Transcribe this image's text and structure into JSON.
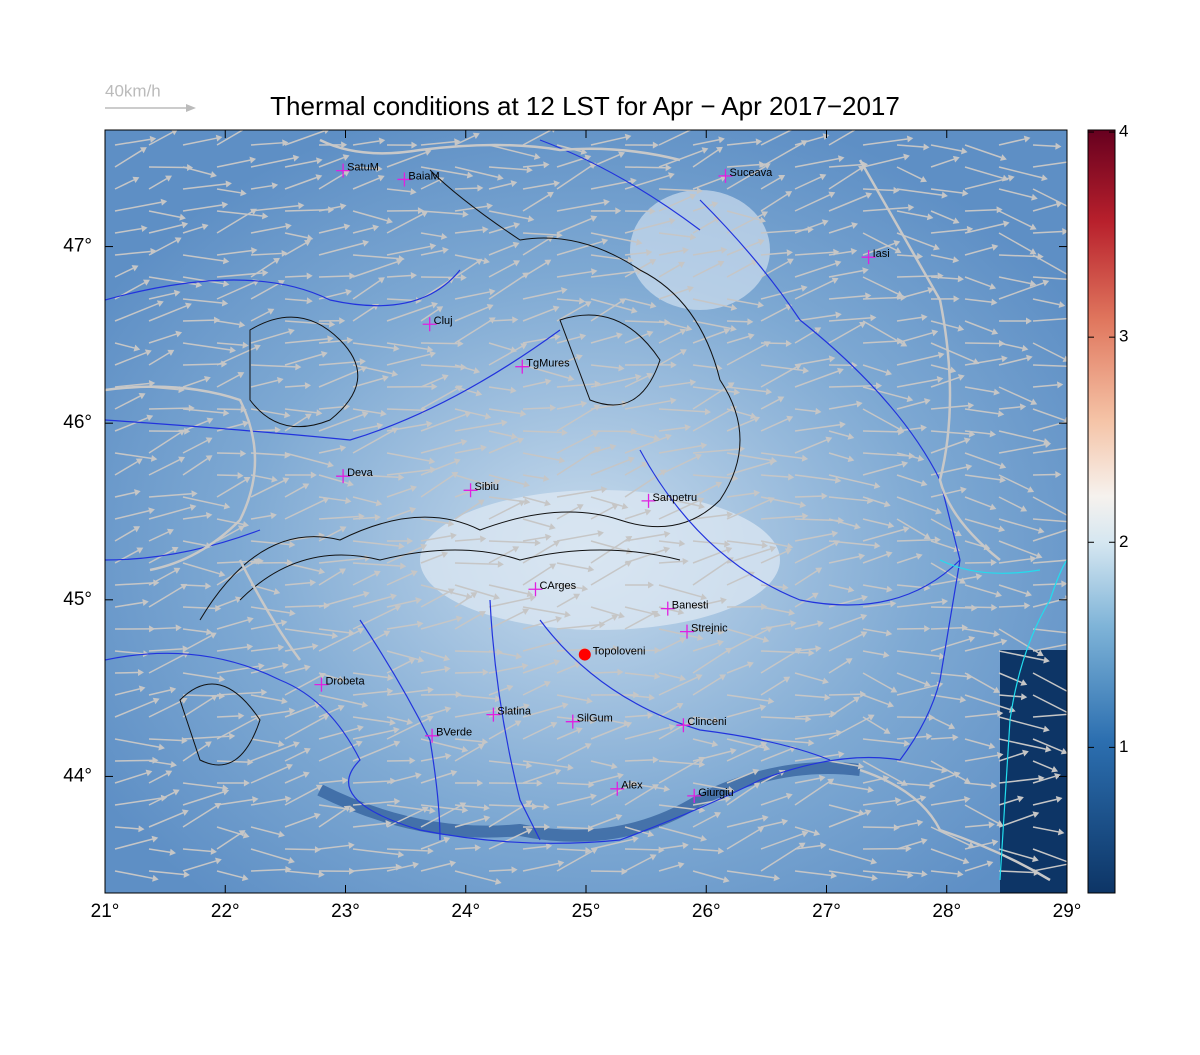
{
  "title": "Thermal conditions at 12 LST for Apr − Apr  2017−2017",
  "wind_legend": "40km/h",
  "map": {
    "lon_range": [
      21,
      29
    ],
    "lat_range": [
      43.34,
      47.66
    ]
  },
  "lon_ticks": [
    {
      "value": 21,
      "label": "21°"
    },
    {
      "value": 22,
      "label": "22°"
    },
    {
      "value": 23,
      "label": "23°"
    },
    {
      "value": 24,
      "label": "24°"
    },
    {
      "value": 25,
      "label": "25°"
    },
    {
      "value": 26,
      "label": "26°"
    },
    {
      "value": 27,
      "label": "27°"
    },
    {
      "value": 28,
      "label": "28°"
    },
    {
      "value": 29,
      "label": "29°"
    }
  ],
  "lat_ticks": [
    {
      "value": 44,
      "label": "44°"
    },
    {
      "value": 45,
      "label": "45°"
    },
    {
      "value": 46,
      "label": "46°"
    },
    {
      "value": 47,
      "label": "47°"
    }
  ],
  "colorbar": {
    "range": [
      0.29,
      4.01
    ],
    "ticks": [
      1,
      2,
      3,
      4
    ]
  },
  "cities": [
    {
      "name": "SatuM",
      "lon": 22.98,
      "lat": 47.43
    },
    {
      "name": "BaiaM",
      "lon": 23.49,
      "lat": 47.38
    },
    {
      "name": "Suceava",
      "lon": 26.16,
      "lat": 47.4
    },
    {
      "name": "Iasi",
      "lon": 27.35,
      "lat": 46.94
    },
    {
      "name": "Cluj",
      "lon": 23.7,
      "lat": 46.56
    },
    {
      "name": "TgMures",
      "lon": 24.47,
      "lat": 46.32
    },
    {
      "name": "Deva",
      "lon": 22.98,
      "lat": 45.7
    },
    {
      "name": "Sibiu",
      "lon": 24.04,
      "lat": 45.62
    },
    {
      "name": "Sanpetru",
      "lon": 25.52,
      "lat": 45.56
    },
    {
      "name": "CArges",
      "lon": 24.58,
      "lat": 45.06
    },
    {
      "name": "Banesti",
      "lon": 25.68,
      "lat": 44.95
    },
    {
      "name": "Strejnic",
      "lon": 25.84,
      "lat": 44.82
    },
    {
      "name": "Drobeta",
      "lon": 22.8,
      "lat": 44.52
    },
    {
      "name": "Slatina",
      "lon": 24.23,
      "lat": 44.35
    },
    {
      "name": "SilGum",
      "lon": 24.89,
      "lat": 44.31
    },
    {
      "name": "Clinceni",
      "lon": 25.81,
      "lat": 44.29
    },
    {
      "name": "BVerde",
      "lon": 23.72,
      "lat": 44.23
    },
    {
      "name": "Alex",
      "lon": 25.26,
      "lat": 43.93
    },
    {
      "name": "Giurgiu",
      "lon": 25.9,
      "lat": 43.89
    }
  ],
  "marker": {
    "name": "Topoloveni",
    "lon": 24.99,
    "lat": 44.69
  }
}
